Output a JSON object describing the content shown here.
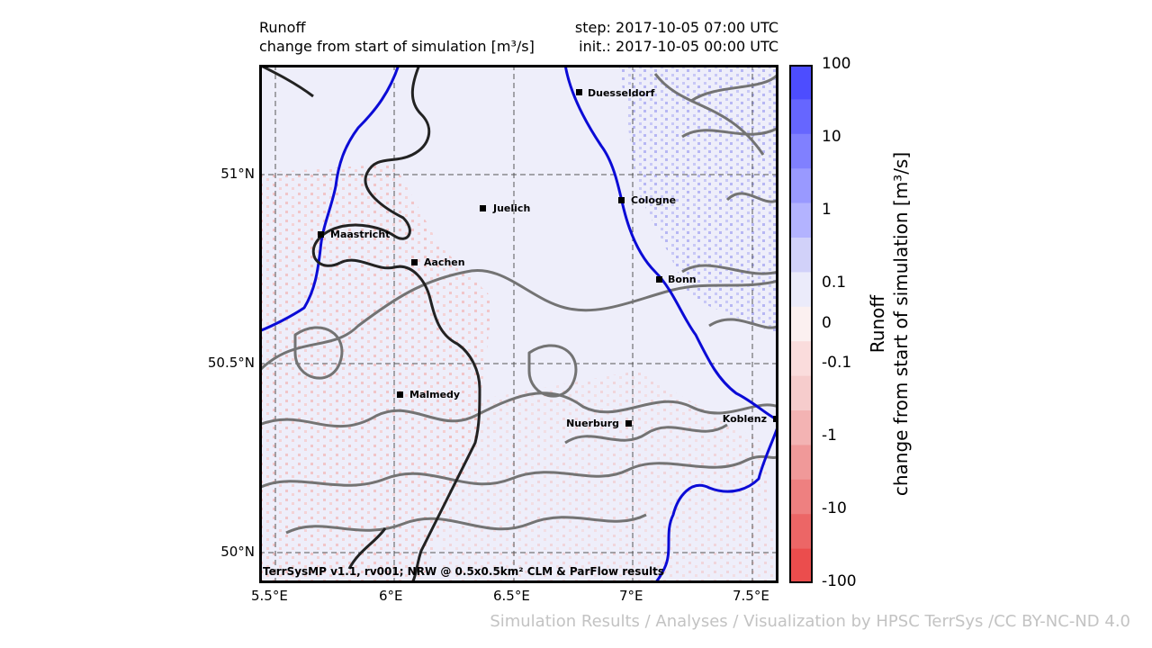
{
  "header": {
    "variable": "Runoff",
    "subtitle": "change from start of simulation [m³/s]",
    "step": "step: 2017-10-05 07:00 UTC",
    "init": "init.: 2017-10-05 00:00 UTC"
  },
  "map": {
    "lat_labels": [
      "51°N",
      "50.5°N",
      "50°N"
    ],
    "lon_labels": [
      "5.5°E",
      "6°E",
      "6.5°E",
      "7°E",
      "7.5°E"
    ],
    "cities": [
      "Duesseldorf",
      "Cologne",
      "Juelich",
      "Maastricht",
      "Aachen",
      "Bonn",
      "Malmedy",
      "Nuerburg",
      "Koblenz"
    ],
    "model_note": "TerrSysMP v1.1, rv001; NRW @ 0.5x0.5km² CLM & ParFlow results"
  },
  "colorbar": {
    "ticks": [
      "100",
      "10",
      "1",
      "0.1",
      "0",
      "-0.1",
      "-1",
      "-10",
      "-100"
    ],
    "label_line1": "Runoff",
    "label_line2": "change from start of simulation [m³/s]",
    "colors": [
      "#4d4dff",
      "#6666ff",
      "#8080ff",
      "#9999ff",
      "#b3b3ff",
      "#d1d1f9",
      "#ebebfa",
      "#fbf0f0",
      "#fadcdc",
      "#f6cccc",
      "#f3b3b3",
      "#f09999",
      "#ee8080",
      "#ec6666",
      "#eb4d4d"
    ]
  },
  "footer": {
    "credit": "Simulation Results / Analyses / Visualization by HPSC TerrSys /CC BY-NC-ND 4.0"
  }
}
